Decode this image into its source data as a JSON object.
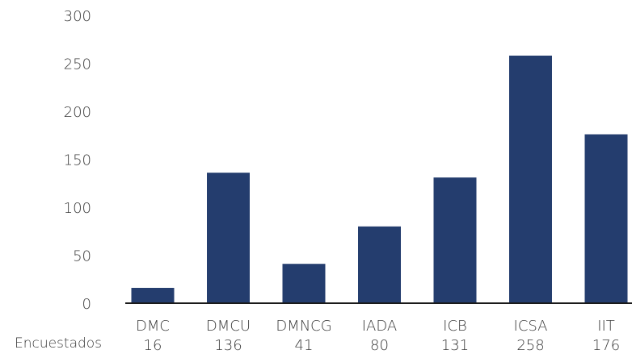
{
  "chart_data": {
    "type": "bar",
    "categories": [
      "DMC",
      "DMCU",
      "DMNCG",
      "IADA",
      "ICB",
      "ICSA",
      "IIT"
    ],
    "values": [
      16,
      136,
      41,
      80,
      131,
      258,
      176
    ],
    "value_labels": [
      "16",
      "136",
      "41",
      "80",
      "131",
      "258",
      "176"
    ],
    "row_label": "Encuestados",
    "yticks": [
      "0",
      "50",
      "100",
      "150",
      "200",
      "250",
      "300"
    ],
    "ylim": [
      0,
      300
    ],
    "title": "",
    "xlabel": "",
    "ylabel": "",
    "grid": false,
    "legend": "none",
    "bar_color": "#243d6e",
    "axis_color": "#1a1a1a"
  }
}
